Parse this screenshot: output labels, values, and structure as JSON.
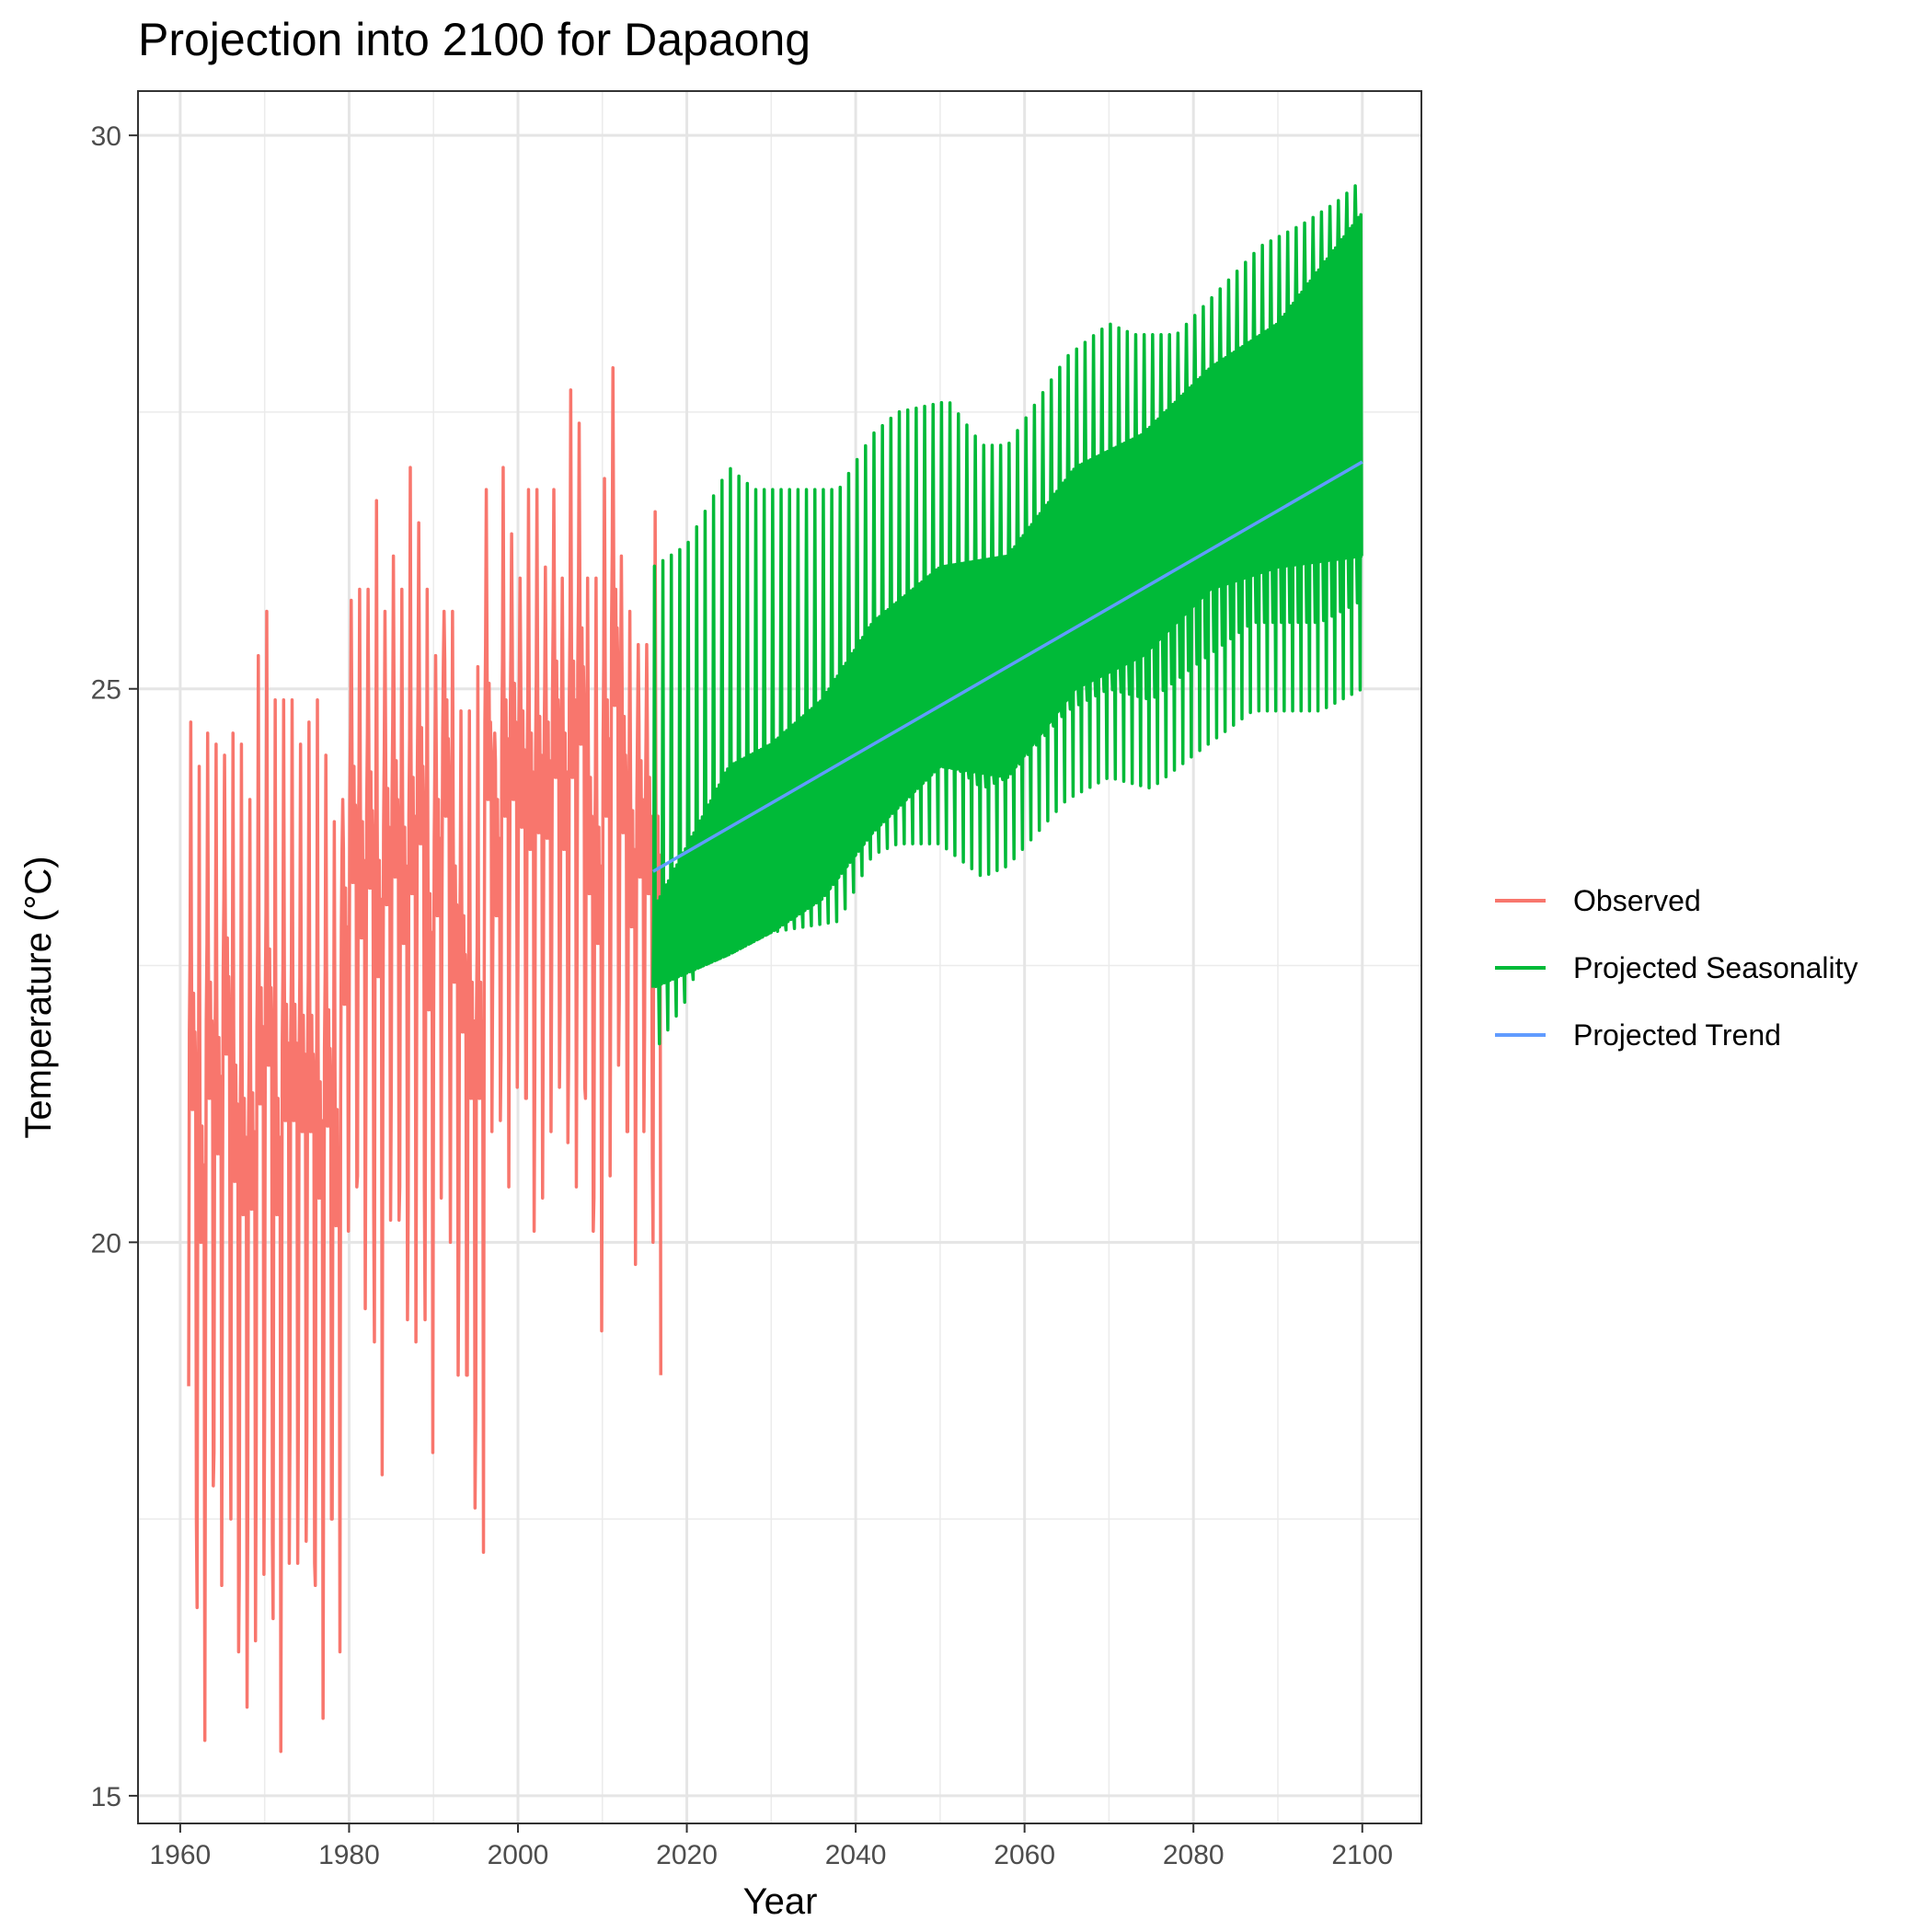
{
  "chart_data": {
    "type": "line",
    "title": "Projection into 2100 for Dapaong",
    "xlabel": "Year",
    "ylabel": "Temperature (°C)",
    "xlim": [
      1955,
      2107
    ],
    "ylim": [
      14.75,
      30.4
    ],
    "x_ticks": [
      1960,
      1980,
      2000,
      2020,
      2040,
      2060,
      2080,
      2100
    ],
    "x_tick_labels": [
      "1960",
      "1980",
      "2000",
      "2020",
      "2040",
      "2060",
      "2080",
      "2100"
    ],
    "y_ticks": [
      15,
      20,
      25,
      30
    ],
    "y_tick_labels": [
      "15",
      "20",
      "25",
      "30"
    ],
    "grid": true,
    "legend_position": "right",
    "series": [
      {
        "name": "Observed",
        "color": "#F8766D",
        "x_start": 1961,
        "x_end": 2016,
        "points_per_year": 12,
        "annual_peak": [
          24.7,
          24.3,
          24.6,
          24.5,
          24.4,
          24.6,
          24.5,
          24.0,
          25.3,
          25.7,
          24.9,
          24.9,
          24.9,
          24.5,
          24.7,
          24.9,
          24.4,
          23.8,
          24.0,
          25.8,
          25.9,
          25.9,
          26.7,
          25.7,
          26.2,
          25.9,
          27.0,
          26.5,
          25.9,
          25.3,
          25.7,
          25.7,
          24.8,
          24.8,
          25.2,
          26.8,
          24.6,
          27.0,
          26.4,
          26.0,
          26.8,
          26.8,
          26.1,
          26.8,
          26.0,
          27.7,
          27.4,
          26.0,
          26.0,
          26.9,
          27.9,
          26.2,
          25.7,
          25.4,
          25.4,
          26.6
        ],
        "annual_trough": [
          17.5,
          15.5,
          17.8,
          16.9,
          18.8,
          16.3,
          15.8,
          16.4,
          17.0,
          17.3,
          15.4,
          17.1,
          17.1,
          17.3,
          17.1,
          15.7,
          17.5,
          16.3,
          20.1,
          20.5,
          19.4,
          20.3,
          17.9,
          20.2,
          20.2,
          19.3,
          19.1,
          20.5,
          18.1,
          20.4,
          21.8,
          18.8,
          18.8,
          17.6,
          17.2,
          21.0,
          21.1,
          20.5,
          21.4,
          21.3,
          20.1,
          20.4,
          21.0,
          21.4,
          20.9,
          20.5,
          21.4,
          20.1,
          19.2,
          20.6,
          21.6,
          21.0,
          19.8,
          21.0,
          20.7,
          18.8
        ],
        "seasonal_mid_amp": 0.7
      },
      {
        "name": "Projected Seasonality",
        "color": "#00BA38",
        "x_start": 2016,
        "x_end": 2100,
        "points_per_year": 12,
        "upper_env": [
          [
            2016,
            26.1
          ],
          [
            2020,
            26.3
          ],
          [
            2025,
            27.0
          ],
          [
            2028,
            26.8
          ],
          [
            2030,
            26.8
          ],
          [
            2038,
            26.8
          ],
          [
            2042,
            27.3
          ],
          [
            2045,
            27.5
          ],
          [
            2051,
            27.6
          ],
          [
            2055,
            27.2
          ],
          [
            2058,
            27.2
          ],
          [
            2065,
            28.0
          ],
          [
            2070,
            28.3
          ],
          [
            2073,
            28.2
          ],
          [
            2078,
            28.2
          ],
          [
            2083,
            28.6
          ],
          [
            2088,
            29.0
          ],
          [
            2093,
            29.2
          ],
          [
            2097,
            29.4
          ],
          [
            2100,
            29.6
          ]
        ],
        "lower_env": [
          [
            2016,
            21.7
          ],
          [
            2020,
            22.2
          ],
          [
            2023,
            22.9
          ],
          [
            2028,
            22.8
          ],
          [
            2030,
            22.8
          ],
          [
            2038,
            22.9
          ],
          [
            2042,
            23.5
          ],
          [
            2045,
            23.6
          ],
          [
            2050,
            23.6
          ],
          [
            2055,
            23.3
          ],
          [
            2058,
            23.4
          ],
          [
            2065,
            24.0
          ],
          [
            2070,
            24.2
          ],
          [
            2075,
            24.1
          ],
          [
            2080,
            24.4
          ],
          [
            2087,
            24.8
          ],
          [
            2090,
            24.8
          ],
          [
            2095,
            24.8
          ],
          [
            2100,
            25.0
          ]
        ],
        "inner_upper_env": [
          [
            2016,
            23.0
          ],
          [
            2025,
            24.3
          ],
          [
            2030,
            24.5
          ],
          [
            2036,
            24.9
          ],
          [
            2042,
            25.6
          ],
          [
            2050,
            26.1
          ],
          [
            2058,
            26.2
          ],
          [
            2066,
            27.0
          ],
          [
            2074,
            27.3
          ],
          [
            2082,
            27.9
          ],
          [
            2090,
            28.3
          ],
          [
            2100,
            29.3
          ]
        ],
        "inner_lower_env": [
          [
            2016,
            22.3
          ],
          [
            2025,
            22.6
          ],
          [
            2030,
            22.8
          ],
          [
            2036,
            23.1
          ],
          [
            2042,
            23.7
          ],
          [
            2050,
            24.3
          ],
          [
            2058,
            24.2
          ],
          [
            2066,
            25.0
          ],
          [
            2074,
            25.3
          ],
          [
            2082,
            25.9
          ],
          [
            2090,
            26.1
          ],
          [
            2100,
            26.2
          ]
        ]
      },
      {
        "name": "Projected Trend",
        "color": "#619CFF",
        "x": [
          2016,
          2100
        ],
        "y": [
          23.35,
          27.05
        ]
      }
    ]
  }
}
